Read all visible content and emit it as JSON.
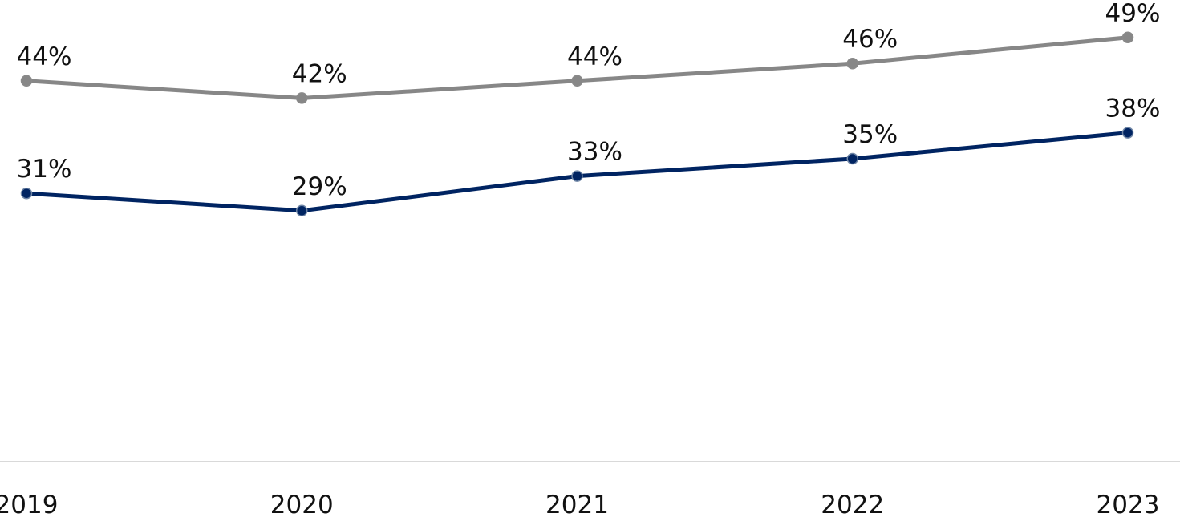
{
  "chart_data": {
    "type": "line",
    "title": "",
    "xlabel": "",
    "ylabel": "",
    "categories": [
      "2019",
      "2020",
      "2021",
      "2022",
      "2023"
    ],
    "series": [
      {
        "values": [
          44,
          42,
          44,
          46,
          49
        ],
        "labels": [
          "44%",
          "42%",
          "44%",
          "46%",
          "49%"
        ],
        "color": "#878787"
      },
      {
        "values": [
          31,
          29,
          33,
          35,
          38
        ],
        "labels": [
          "31%",
          "29%",
          "33%",
          "35%",
          "38%"
        ],
        "color": "#002462"
      }
    ],
    "ylim": [
      0,
      55
    ],
    "grid": false,
    "axis_color": "#d9d9d9"
  }
}
